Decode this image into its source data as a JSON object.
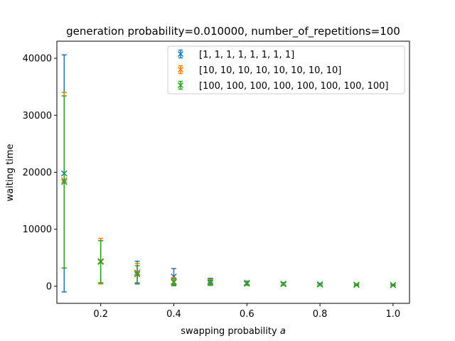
{
  "chart_data": {
    "type": "scatter",
    "title": "generation probability=0.010000, number_of_repetitions=100",
    "xlabel_text": "swapping probability ",
    "xlabel_var": "a",
    "ylabel": "waiting time",
    "xlim": [
      0.08,
      1.045
    ],
    "ylim": [
      -3000,
      43000
    ],
    "xticks": [
      0.2,
      0.4,
      0.6,
      0.8,
      1.0
    ],
    "xtick_labels": [
      "0.2",
      "0.4",
      "0.6",
      "0.8",
      "1.0"
    ],
    "yticks": [
      0,
      10000,
      20000,
      30000,
      40000
    ],
    "ytick_labels": [
      "0",
      "10000",
      "20000",
      "30000",
      "40000"
    ],
    "marker": "x",
    "error_bars": true,
    "legend_position": "top-right",
    "x": [
      0.1,
      0.2,
      0.3,
      0.4,
      0.5,
      0.6,
      0.7,
      0.8,
      0.9,
      1.0
    ],
    "series": [
      {
        "name": "[1, 1, 1, 1, 1, 1, 1, 1]",
        "color": "#1f77b4",
        "y": [
          19800,
          4300,
          2400,
          1700,
          900,
          600,
          450,
          350,
          280,
          230
        ],
        "err": [
          20800,
          3700,
          2000,
          1400,
          500,
          300,
          200,
          150,
          120,
          100
        ]
      },
      {
        "name": "[10, 10, 10, 10, 10, 10, 10, 10]",
        "color": "#ff7f0e",
        "y": [
          18600,
          4400,
          2300,
          800,
          700,
          500,
          400,
          300,
          250,
          200
        ],
        "err": [
          15400,
          4000,
          1700,
          700,
          500,
          300,
          200,
          150,
          120,
          100
        ]
      },
      {
        "name": "[100, 100, 100, 100, 100, 100, 100, 100]",
        "color": "#2ca02c",
        "y": [
          18300,
          4300,
          2100,
          700,
          600,
          450,
          380,
          300,
          240,
          200
        ],
        "err": [
          15100,
          3700,
          1500,
          600,
          450,
          280,
          200,
          150,
          120,
          100
        ]
      }
    ]
  }
}
